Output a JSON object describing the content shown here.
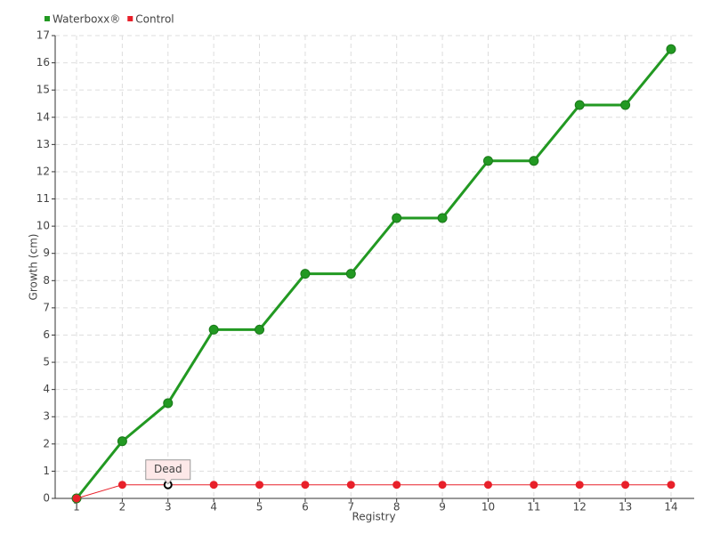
{
  "chart_data": {
    "type": "line",
    "x_label": "Registry",
    "y_label": "Growth (cm)",
    "categories": [
      "1",
      "2",
      "3",
      "4",
      "5",
      "6",
      "7",
      "8",
      "9",
      "10",
      "11",
      "12",
      "13",
      "14"
    ],
    "series": [
      {
        "name": "Waterboxx®",
        "color": "#229922",
        "values": [
          0,
          2.1,
          3.5,
          6.2,
          6.2,
          8.25,
          8.25,
          10.3,
          10.3,
          12.4,
          12.4,
          14.45,
          14.45,
          16.5
        ]
      },
      {
        "name": "Control",
        "color": "#e8202a",
        "values": [
          0,
          0.5,
          0.5,
          0.5,
          0.5,
          0.5,
          0.5,
          0.5,
          0.5,
          0.5,
          0.5,
          0.5,
          0.5,
          0.5
        ]
      }
    ],
    "annotation": "Dead",
    "ylim": [
      0,
      17
    ],
    "yticks": [
      0,
      1,
      2,
      3,
      4,
      5,
      6,
      7,
      8,
      9,
      10,
      11,
      12,
      13,
      14,
      15,
      16,
      17
    ],
    "grid": true,
    "legend": "top-left"
  }
}
